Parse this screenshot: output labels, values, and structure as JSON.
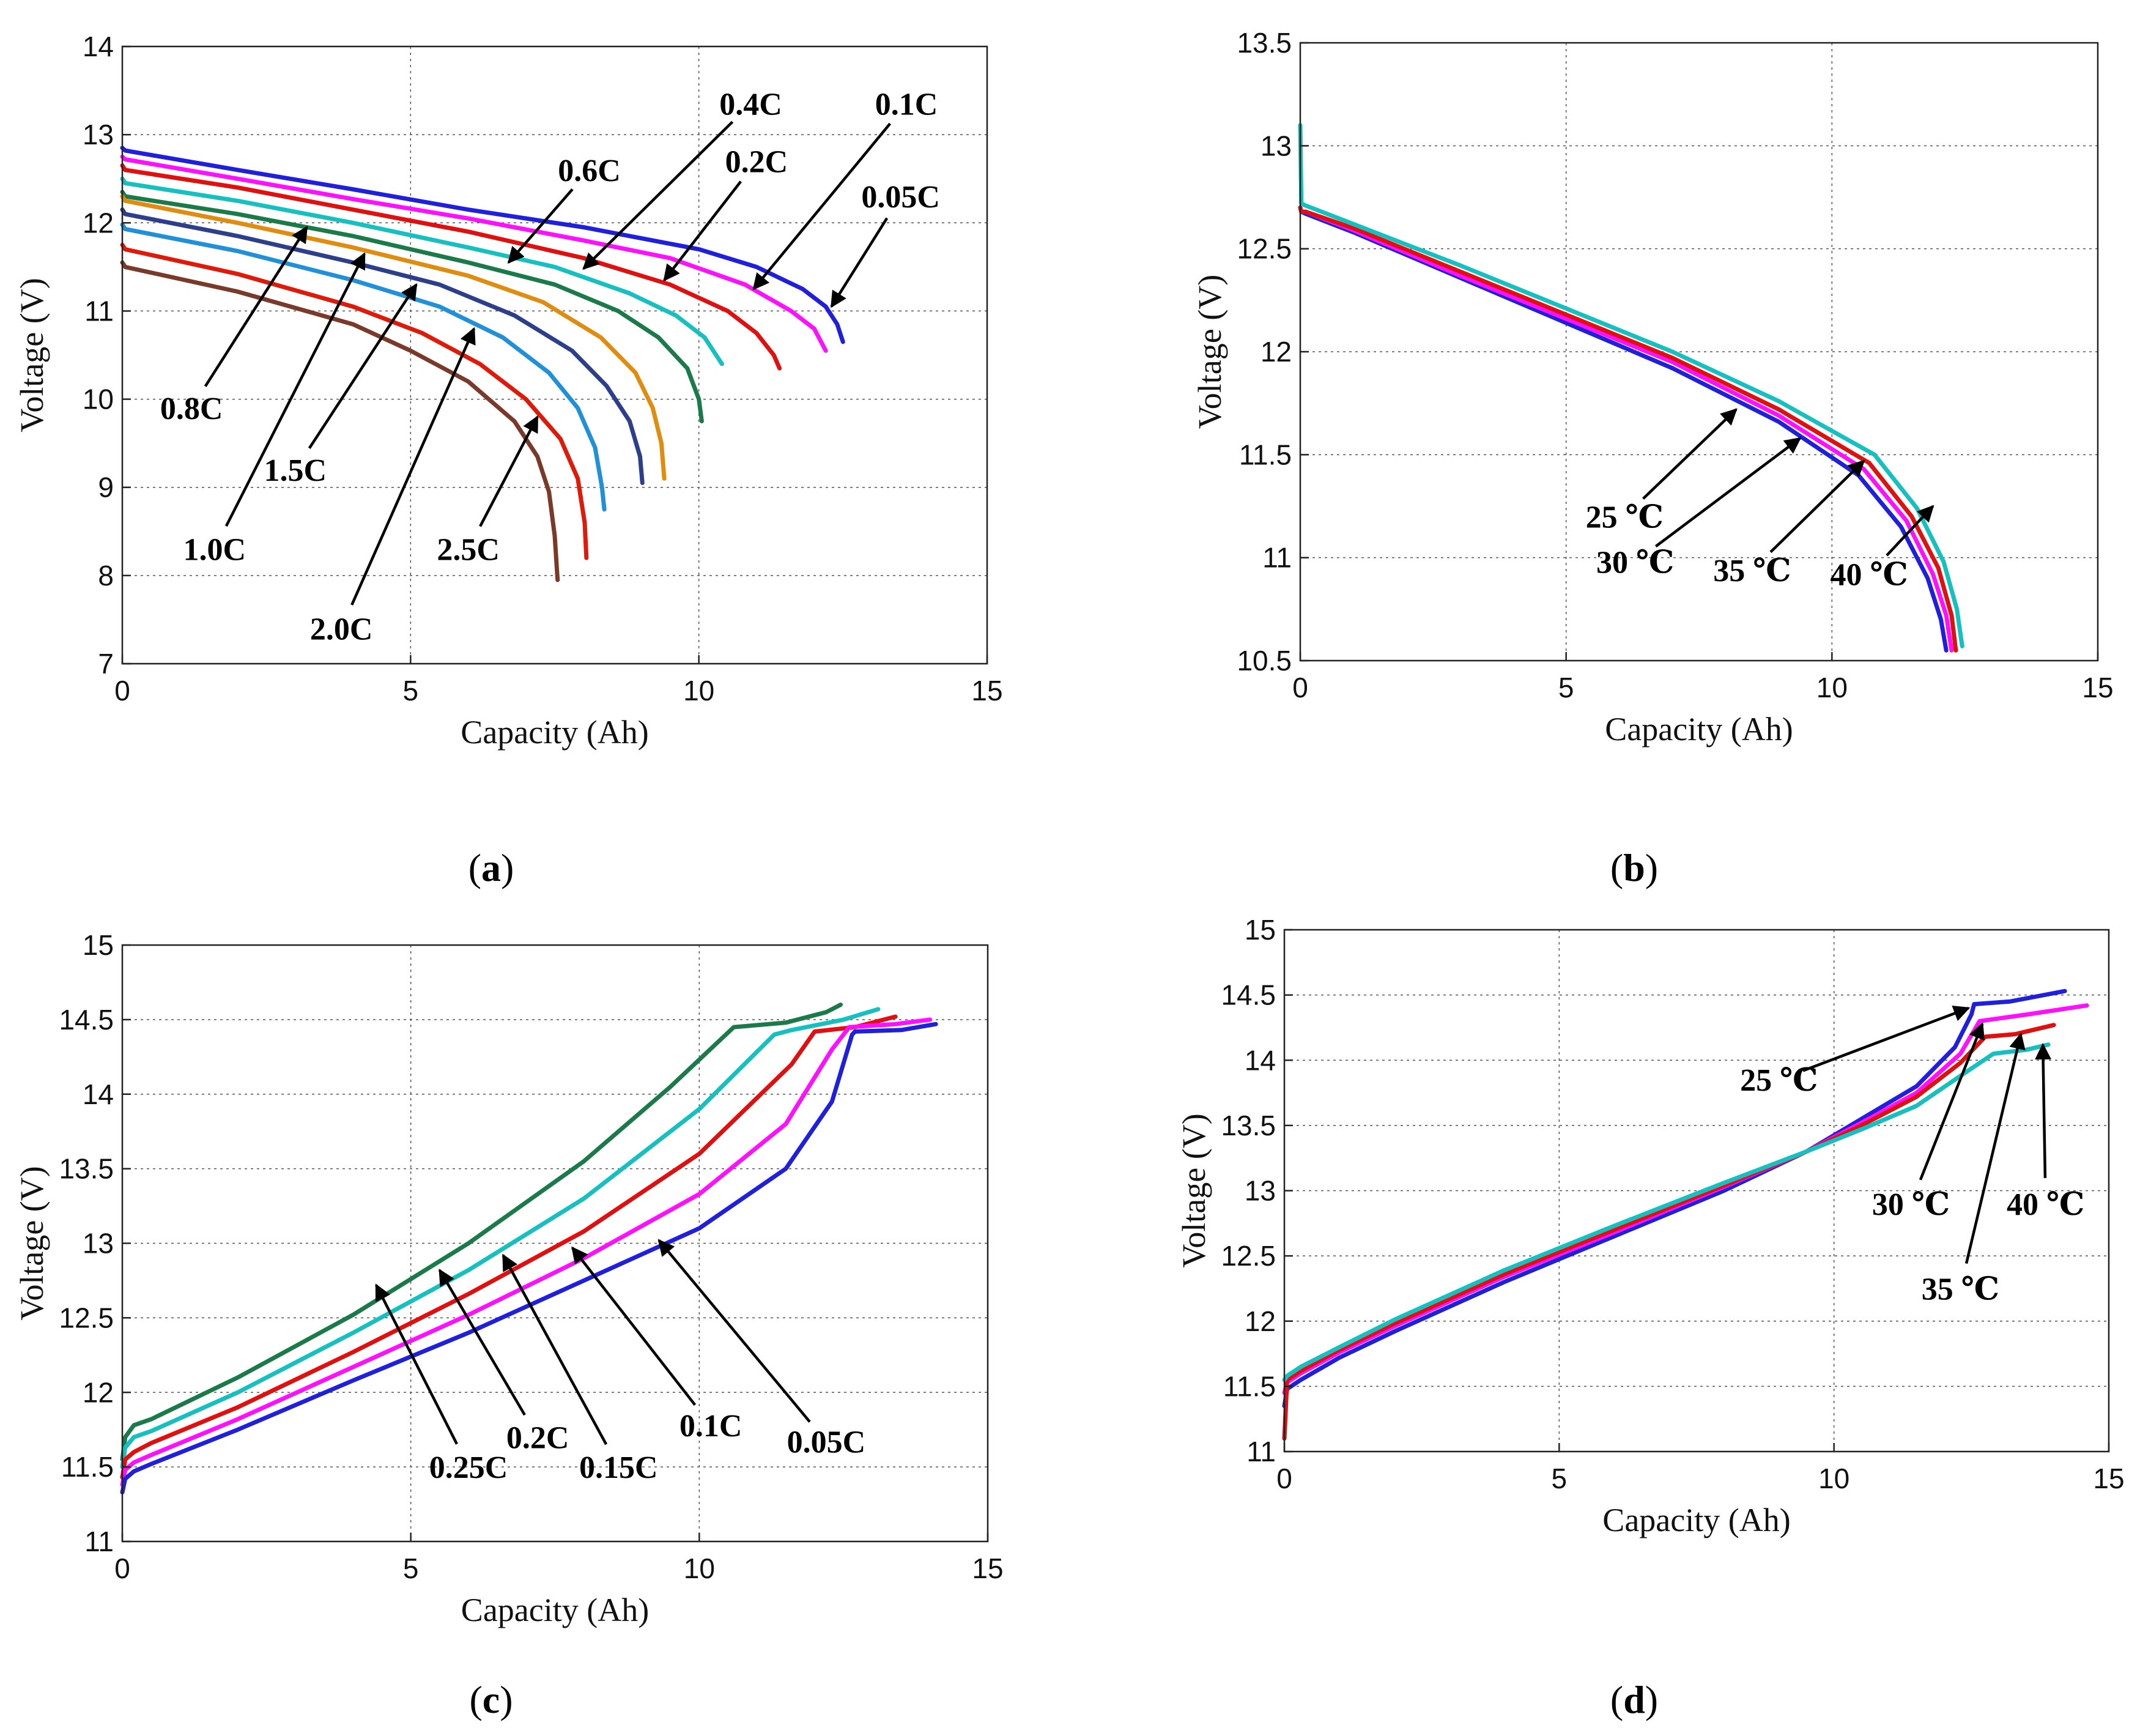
{
  "chart_data": [
    {
      "panel": "a",
      "type": "line",
      "caption": "(a)",
      "caption_letter": "a",
      "xlabel": "Capacity (Ah)",
      "ylabel": "Voltage (V)",
      "xlim": [
        0,
        15
      ],
      "ylim": [
        7,
        14
      ],
      "xticks": [
        0,
        5,
        10,
        15
      ],
      "yticks": [
        7,
        8,
        9,
        10,
        11,
        12,
        13,
        14
      ],
      "grid": true,
      "series": [
        {
          "name": "0.05C",
          "color": "#1f1fdc",
          "x": [
            0,
            0.05,
            2,
            4,
            6,
            8,
            10,
            11,
            11.8,
            12.2,
            12.4,
            12.5
          ],
          "y": [
            12.85,
            12.82,
            12.6,
            12.38,
            12.15,
            11.95,
            11.7,
            11.5,
            11.25,
            11.05,
            10.85,
            10.65
          ]
        },
        {
          "name": "0.1C",
          "color": "#ff10ff",
          "x": [
            0,
            0.05,
            2,
            4,
            6,
            8,
            9.5,
            10.8,
            11.6,
            12,
            12.2
          ],
          "y": [
            12.75,
            12.72,
            12.5,
            12.27,
            12.05,
            11.8,
            11.6,
            11.3,
            11.0,
            10.8,
            10.55
          ]
        },
        {
          "name": "0.2C",
          "color": "#e01010",
          "x": [
            0,
            0.05,
            2,
            4,
            6,
            8,
            9.5,
            10.5,
            11,
            11.3,
            11.4
          ],
          "y": [
            12.65,
            12.6,
            12.4,
            12.15,
            11.9,
            11.6,
            11.3,
            11.0,
            10.75,
            10.5,
            10.35
          ]
        },
        {
          "name": "0.4C",
          "color": "#17c0c0",
          "x": [
            0,
            0.05,
            2,
            4,
            6,
            7.5,
            8.8,
            9.6,
            10.1,
            10.3,
            10.4
          ],
          "y": [
            12.5,
            12.45,
            12.25,
            12.0,
            11.72,
            11.5,
            11.2,
            10.95,
            10.7,
            10.5,
            10.4
          ]
        },
        {
          "name": "0.6C",
          "color": "#1a7a4a",
          "x": [
            0,
            0.05,
            2,
            4,
            6,
            7.5,
            8.6,
            9.3,
            9.8,
            10,
            10.05
          ],
          "y": [
            12.35,
            12.3,
            12.1,
            11.85,
            11.55,
            11.3,
            11.0,
            10.7,
            10.35,
            10.0,
            9.75
          ]
        },
        {
          "name": "0.8C",
          "color": "#e08c10",
          "x": [
            0,
            0.05,
            2,
            4,
            6,
            7.3,
            8.3,
            8.9,
            9.2,
            9.35,
            9.4
          ],
          "y": [
            12.3,
            12.25,
            12.0,
            11.72,
            11.4,
            11.1,
            10.7,
            10.3,
            9.9,
            9.5,
            9.1
          ]
        },
        {
          "name": "1.0C",
          "color": "#2d3f8a",
          "x": [
            0,
            0.05,
            2,
            4,
            5.5,
            6.8,
            7.8,
            8.4,
            8.8,
            8.98,
            9.02
          ],
          "y": [
            12.15,
            12.1,
            11.85,
            11.55,
            11.3,
            10.95,
            10.55,
            10.15,
            9.75,
            9.35,
            9.05
          ]
        },
        {
          "name": "1.5C",
          "color": "#2090d8",
          "x": [
            0,
            0.05,
            2,
            4,
            5.5,
            6.6,
            7.4,
            7.9,
            8.2,
            8.32,
            8.36
          ],
          "y": [
            11.98,
            11.93,
            11.68,
            11.35,
            11.05,
            10.7,
            10.3,
            9.9,
            9.45,
            9.0,
            8.75
          ]
        },
        {
          "name": "2.0C",
          "color": "#e01a0a",
          "x": [
            0,
            0.05,
            2,
            4,
            5.2,
            6.2,
            7.0,
            7.6,
            7.9,
            8.02,
            8.05
          ],
          "y": [
            11.75,
            11.7,
            11.42,
            11.05,
            10.75,
            10.4,
            10.0,
            9.55,
            9.1,
            8.6,
            8.2
          ]
        },
        {
          "name": "2.5C",
          "color": "#7a3a2a",
          "x": [
            0,
            0.05,
            2,
            4,
            5.0,
            6.0,
            6.8,
            7.2,
            7.4,
            7.5,
            7.55
          ],
          "y": [
            11.55,
            11.5,
            11.22,
            10.85,
            10.55,
            10.2,
            9.75,
            9.35,
            8.95,
            8.45,
            7.95
          ]
        }
      ],
      "annotations": [
        {
          "text": "0.4C",
          "label_x": 10.9,
          "label_y": 13.35,
          "arrow_x": 8.0,
          "arrow_y": 11.48
        },
        {
          "text": "0.1C",
          "label_x": 13.6,
          "label_y": 13.35,
          "arrow_x": 10.95,
          "arrow_y": 11.25
        },
        {
          "text": "0.6C",
          "label_x": 8.1,
          "label_y": 12.6,
          "arrow_x": 6.7,
          "arrow_y": 11.55
        },
        {
          "text": "0.2C",
          "label_x": 11.0,
          "label_y": 12.7,
          "arrow_x": 9.4,
          "arrow_y": 11.35
        },
        {
          "text": "0.05C",
          "label_x": 13.5,
          "label_y": 12.3,
          "arrow_x": 12.3,
          "arrow_y": 11.05
        },
        {
          "text": "0.8C",
          "label_x": 1.2,
          "label_y": 9.9,
          "arrow_x": 3.2,
          "arrow_y": 11.95
        },
        {
          "text": "1.0C",
          "label_x": 1.6,
          "label_y": 8.3,
          "arrow_x": 4.2,
          "arrow_y": 11.65
        },
        {
          "text": "1.5C",
          "label_x": 3.0,
          "label_y": 9.2,
          "arrow_x": 5.1,
          "arrow_y": 11.3
        },
        {
          "text": "2.0C",
          "label_x": 3.8,
          "label_y": 7.4,
          "arrow_x": 6.1,
          "arrow_y": 10.8
        },
        {
          "text": "2.5C",
          "label_x": 6.0,
          "label_y": 8.3,
          "arrow_x": 7.2,
          "arrow_y": 9.8
        }
      ]
    },
    {
      "panel": "b",
      "type": "line",
      "caption": "(b)",
      "caption_letter": "b",
      "xlabel": "Capacity (Ah)",
      "ylabel": "Voltage (V)",
      "xlim": [
        0,
        15
      ],
      "ylim": [
        10.5,
        13.5
      ],
      "xticks": [
        0,
        5,
        10,
        15
      ],
      "yticks": [
        10.5,
        11,
        11.5,
        12,
        12.5,
        13,
        13.5
      ],
      "grid": true,
      "series": [
        {
          "name": "25 ℃",
          "color": "#1f1fdc",
          "x": [
            0,
            0.02,
            0.1,
            1,
            3,
            5,
            7,
            9,
            10.5,
            11.3,
            11.8,
            12.05,
            12.15
          ],
          "y": [
            12.7,
            12.68,
            12.67,
            12.58,
            12.36,
            12.14,
            11.92,
            11.66,
            11.4,
            11.15,
            10.9,
            10.7,
            10.55
          ]
        },
        {
          "name": "30 ℃",
          "color": "#ff10ff",
          "x": [
            0,
            0.02,
            0.1,
            1,
            3,
            5,
            7,
            9,
            10.6,
            11.4,
            11.9,
            12.15,
            12.25
          ],
          "y": [
            12.7,
            12.68,
            12.68,
            12.59,
            12.37,
            12.16,
            11.95,
            11.69,
            11.43,
            11.18,
            10.92,
            10.72,
            10.55
          ]
        },
        {
          "name": "35 ℃",
          "color": "#e01010",
          "x": [
            0,
            0.02,
            0.1,
            1,
            3,
            5,
            7,
            9,
            10.7,
            11.5,
            12.0,
            12.25,
            12.33
          ],
          "y": [
            12.7,
            12.68,
            12.68,
            12.6,
            12.39,
            12.18,
            11.97,
            11.72,
            11.46,
            11.2,
            10.95,
            10.72,
            10.55
          ]
        },
        {
          "name": "40 ℃",
          "color": "#17c0c0",
          "x": [
            0,
            0.02,
            0.1,
            1,
            3,
            5,
            7,
            9,
            10.8,
            11.6,
            12.1,
            12.35,
            12.45
          ],
          "y": [
            13.1,
            12.72,
            12.71,
            12.62,
            12.42,
            12.21,
            12.0,
            11.76,
            11.5,
            11.24,
            10.98,
            10.75,
            10.57
          ]
        }
      ],
      "annotations": [
        {
          "text": "25 ℃",
          "label_x": 6.1,
          "label_y": 11.2,
          "arrow_x": 8.2,
          "arrow_y": 11.72
        },
        {
          "text": "30 ℃",
          "label_x": 6.3,
          "label_y": 10.98,
          "arrow_x": 9.4,
          "arrow_y": 11.58
        },
        {
          "text": "35 ℃",
          "label_x": 8.5,
          "label_y": 10.94,
          "arrow_x": 10.6,
          "arrow_y": 11.47
        },
        {
          "text": "40 ℃",
          "label_x": 10.7,
          "label_y": 10.92,
          "arrow_x": 11.9,
          "arrow_y": 11.25
        }
      ]
    },
    {
      "panel": "c",
      "type": "line",
      "caption": "(c)",
      "caption_letter": "c",
      "xlabel": "Capacity (Ah)",
      "ylabel": "Voltage (V)",
      "xlim": [
        0,
        15
      ],
      "ylim": [
        11,
        15
      ],
      "xticks": [
        0,
        5,
        10,
        15
      ],
      "yticks": [
        11,
        11.5,
        12,
        12.5,
        13,
        13.5,
        14,
        14.5,
        15
      ],
      "grid": true,
      "series": [
        {
          "name": "0.25C",
          "color": "#1a7a4a",
          "x": [
            0,
            0.05,
            0.2,
            0.5,
            2,
            4,
            6,
            8,
            9.5,
            10.6,
            11.5,
            12.2,
            12.45
          ],
          "y": [
            11.55,
            11.7,
            11.78,
            11.82,
            12.1,
            12.52,
            13.0,
            13.55,
            14.05,
            14.45,
            14.48,
            14.55,
            14.6
          ]
        },
        {
          "name": "0.2C",
          "color": "#17c0c0",
          "x": [
            0,
            0.05,
            0.2,
            0.5,
            2,
            4,
            6,
            8,
            10,
            11.3,
            11.6,
            12.5,
            13.1
          ],
          "y": [
            11.5,
            11.63,
            11.7,
            11.74,
            12.0,
            12.4,
            12.82,
            13.3,
            13.9,
            14.4,
            14.43,
            14.5,
            14.57
          ]
        },
        {
          "name": "0.15C",
          "color": "#e01010",
          "x": [
            0,
            0.05,
            0.2,
            0.5,
            2,
            4,
            6,
            8,
            10,
            11.6,
            12.0,
            12.7,
            13.4
          ],
          "y": [
            11.43,
            11.55,
            11.6,
            11.66,
            11.9,
            12.27,
            12.66,
            13.08,
            13.6,
            14.2,
            14.42,
            14.45,
            14.52
          ]
        },
        {
          "name": "0.1C",
          "color": "#ff10ff",
          "x": [
            0,
            0.05,
            0.2,
            0.5,
            2,
            4,
            6,
            8,
            10,
            11.5,
            12.3,
            12.6,
            13.4,
            14.0
          ],
          "y": [
            11.38,
            11.48,
            11.53,
            11.58,
            11.82,
            12.17,
            12.52,
            12.9,
            13.33,
            13.8,
            14.3,
            14.45,
            14.47,
            14.5
          ]
        },
        {
          "name": "0.05C",
          "color": "#1f1fdc",
          "x": [
            0,
            0.05,
            0.2,
            0.5,
            2,
            4,
            6,
            8,
            10,
            11.5,
            12.3,
            12.65,
            12.7,
            13.5,
            14.1
          ],
          "y": [
            11.33,
            11.42,
            11.47,
            11.52,
            11.75,
            12.08,
            12.4,
            12.75,
            13.1,
            13.5,
            13.95,
            14.4,
            14.42,
            14.43,
            14.47
          ]
        }
      ],
      "annotations": [
        {
          "text": "0.25C",
          "label_x": 6.0,
          "label_y": 11.5,
          "arrow_x": 4.4,
          "arrow_y": 12.72
        },
        {
          "text": "0.2C",
          "label_x": 7.2,
          "label_y": 11.7,
          "arrow_x": 5.5,
          "arrow_y": 12.82
        },
        {
          "text": "0.15C",
          "label_x": 8.6,
          "label_y": 11.5,
          "arrow_x": 6.6,
          "arrow_y": 12.92
        },
        {
          "text": "0.1C",
          "label_x": 10.2,
          "label_y": 11.78,
          "arrow_x": 7.8,
          "arrow_y": 12.97
        },
        {
          "text": "0.05C",
          "label_x": 12.2,
          "label_y": 11.67,
          "arrow_x": 9.3,
          "arrow_y": 13.02
        }
      ]
    },
    {
      "panel": "d",
      "type": "line",
      "caption": "(d)",
      "caption_letter": "d",
      "xlabel": "Capacity (Ah)",
      "ylabel": "Voltage (V)",
      "xlim": [
        0,
        15
      ],
      "ylim": [
        11,
        15
      ],
      "xticks": [
        0,
        5,
        10,
        15
      ],
      "yticks": [
        11,
        11.5,
        12,
        12.5,
        13,
        13.5,
        14,
        14.5,
        15
      ],
      "grid": true,
      "series": [
        {
          "name": "25 ℃",
          "color": "#1f1fdc",
          "x": [
            0,
            0.05,
            0.3,
            1,
            2,
            4,
            6,
            8,
            9.5,
            10.5,
            11.5,
            12.2,
            12.5,
            12.55,
            13.2,
            14.2
          ],
          "y": [
            11.35,
            11.48,
            11.55,
            11.72,
            11.92,
            12.3,
            12.65,
            13.0,
            13.3,
            13.55,
            13.8,
            14.1,
            14.35,
            14.43,
            14.45,
            14.53
          ]
        },
        {
          "name": "30 ℃",
          "color": "#ff10ff",
          "x": [
            0,
            0.05,
            0.3,
            1,
            2,
            4,
            6,
            8,
            9.5,
            10.5,
            11.5,
            12.3,
            12.65,
            13.5,
            14.6
          ],
          "y": [
            11.45,
            11.53,
            11.6,
            11.76,
            11.96,
            12.34,
            12.68,
            13.03,
            13.3,
            13.52,
            13.75,
            14.05,
            14.3,
            14.35,
            14.42
          ]
        },
        {
          "name": "35 ℃",
          "color": "#e01010",
          "x": [
            0,
            0.05,
            0.3,
            1,
            2,
            4,
            6,
            8,
            9.5,
            10.5,
            11.5,
            12.3,
            12.75,
            13.3,
            14.0
          ],
          "y": [
            11.1,
            11.55,
            11.62,
            11.78,
            11.98,
            12.36,
            12.7,
            13.04,
            13.3,
            13.5,
            13.72,
            13.98,
            14.18,
            14.2,
            14.27
          ]
        },
        {
          "name": "40 ℃",
          "color": "#17c0c0",
          "x": [
            0,
            0.05,
            0.3,
            1,
            2,
            4,
            6,
            8,
            9.5,
            10.5,
            11.5,
            12.3,
            12.9,
            13.5,
            13.9
          ],
          "y": [
            11.55,
            11.58,
            11.65,
            11.8,
            12.01,
            12.39,
            12.73,
            13.06,
            13.3,
            13.47,
            13.65,
            13.88,
            14.05,
            14.08,
            14.12
          ]
        }
      ],
      "annotations": [
        {
          "text": "25 ℃",
          "label_x": 9.0,
          "label_y": 13.85,
          "arrow_x": 12.45,
          "arrow_y": 14.4
        },
        {
          "text": "30 ℃",
          "label_x": 11.4,
          "label_y": 12.9,
          "arrow_x": 12.7,
          "arrow_y": 14.28
        },
        {
          "text": "35 ℃",
          "label_x": 12.3,
          "label_y": 12.25,
          "arrow_x": 13.4,
          "arrow_y": 14.2
        },
        {
          "text": "40 ℃",
          "label_x": 13.85,
          "label_y": 12.9,
          "arrow_x": 13.8,
          "arrow_y": 14.12
        }
      ]
    }
  ]
}
